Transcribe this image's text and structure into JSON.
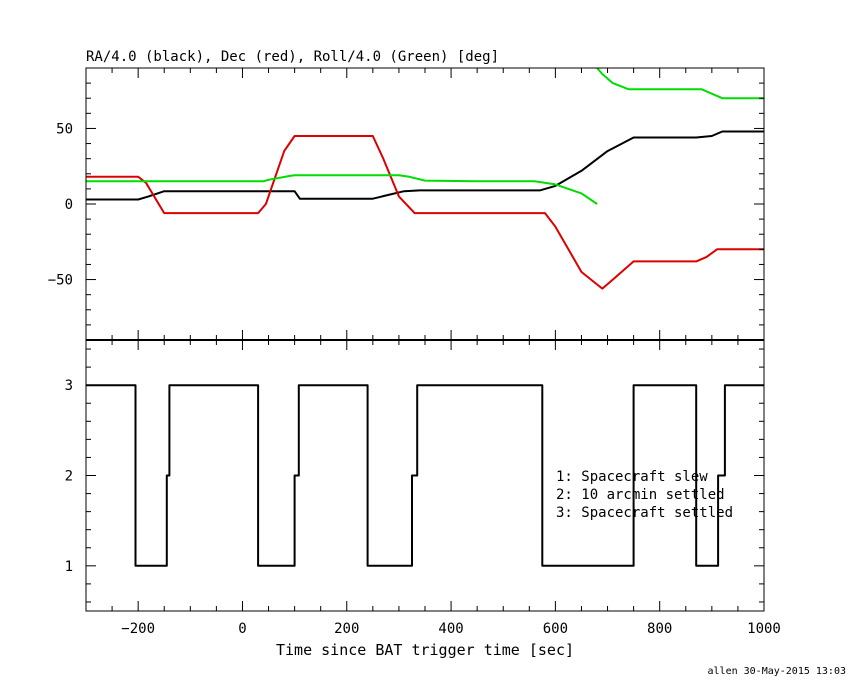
{
  "chart_data": [
    {
      "type": "line",
      "title": "RA/4.0 (black), Dec (red), Roll/4.0 (Green) [deg]",
      "xlim": [
        -300,
        1000
      ],
      "ylim": [
        -90,
        90
      ],
      "grid": false,
      "y_ticks": [
        50,
        0,
        -50
      ],
      "y_tick_labels": [
        "50",
        "0",
        "−50"
      ],
      "series": [
        {
          "color": "#000000",
          "x": [
            -300,
            -200,
            -180,
            -150,
            100,
            110,
            250,
            280,
            310,
            340,
            450,
            570,
            600,
            650,
            700,
            750,
            870,
            900,
            920,
            1000
          ],
          "y": [
            3,
            3,
            5,
            8.5,
            8.5,
            3.5,
            3.5,
            6,
            8.5,
            9,
            9,
            9,
            12,
            22,
            35,
            44,
            44,
            45,
            48,
            48
          ]
        },
        {
          "color": "#dd0000",
          "x": [
            -300,
            -200,
            -185,
            -150,
            30,
            45,
            80,
            100,
            250,
            270,
            300,
            330,
            580,
            600,
            650,
            690,
            710,
            750,
            870,
            890,
            910,
            1000
          ],
          "y": [
            18,
            18,
            14,
            -6,
            -6,
            0,
            35,
            45,
            45,
            30,
            5,
            -6,
            -6,
            -15,
            -45,
            -56,
            -50,
            -38,
            -38,
            -35,
            -30,
            -30
          ]
        },
        {
          "color": "#00dd00",
          "x": [
            -300,
            -200,
            40,
            50,
            90,
            100,
            300,
            320,
            350,
            450,
            560,
            600,
            650,
            680
          ],
          "y": [
            15,
            15,
            15,
            16,
            18.5,
            19,
            19,
            18,
            15.5,
            15,
            15,
            13,
            7,
            0
          ]
        },
        {
          "color": "#00dd00",
          "x": [
            680,
            690,
            710,
            740,
            760,
            860,
            880,
            900,
            920,
            1000
          ],
          "y": [
            90,
            86,
            80,
            76,
            76,
            76,
            76,
            73,
            70,
            70
          ]
        }
      ]
    },
    {
      "type": "line",
      "step": true,
      "xlabel": "Time since BAT trigger time [sec]",
      "xlim": [
        -300,
        1000
      ],
      "ylim": [
        0.5,
        3.5
      ],
      "grid": false,
      "x_ticks": [
        -200,
        0,
        200,
        400,
        600,
        800,
        1000
      ],
      "x_tick_labels": [
        "−200",
        "0",
        "200",
        "400",
        "600",
        "800",
        "1000"
      ],
      "y_ticks": [
        3,
        2,
        1
      ],
      "y_tick_labels": [
        "3",
        "2",
        "1"
      ],
      "legend": [
        "1: Spacecraft slew",
        "2: 10 arcmin settled",
        "3: Spacecraft settled"
      ],
      "series": [
        {
          "color": "#000000",
          "x": [
            -300,
            -205,
            -205,
            -145,
            -145,
            -140,
            -140,
            30,
            30,
            100,
            100,
            108,
            108,
            240,
            240,
            325,
            325,
            335,
            335,
            575,
            575,
            750,
            750,
            870,
            870,
            912,
            912,
            925,
            925,
            1000
          ],
          "y": [
            3,
            3,
            1,
            1,
            2,
            2,
            3,
            3,
            1,
            1,
            2,
            2,
            3,
            3,
            1,
            1,
            2,
            2,
            3,
            3,
            1,
            1,
            3,
            3,
            1,
            1,
            2,
            2,
            3,
            3
          ]
        }
      ]
    }
  ],
  "footer": {
    "credit": "allen 30-May-2015 13:03"
  }
}
